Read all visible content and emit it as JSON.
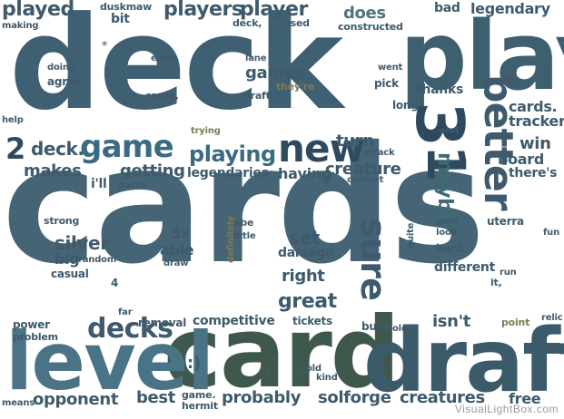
{
  "words": {
    "deck": "deck",
    "cards": "cards",
    "card": "card",
    "play": "play",
    "draft": "draft",
    "level": "level",
    "game": "game",
    "new": "new",
    "three": "3",
    "one": "1",
    "better": "better",
    "sure": "sure",
    "decks": "decks",
    "playing": "playing",
    "played": "played",
    "duskmaw": "duskmaw",
    "players": "players",
    "player": "player",
    "does": "does",
    "bad": "bad",
    "legendary": "legendary",
    "making": "making",
    "bit": "bit",
    "deck_comma": "deck,",
    "used": "used",
    "constructed": "constructed",
    "extra": "extra",
    "lane": "lane",
    "went": "went",
    "doing": "doing",
    "agree": "agree",
    "games": "games",
    "pick": "pick",
    "cards_comma": "cards,",
    "draft_dot": "draft.",
    "theyre": "they're",
    "thanks": "thanks",
    "long": "long",
    "help": "help",
    "trying": "trying",
    "cards_dot": "cards.",
    "tracker": "tracker",
    "end": "end",
    "two": "2",
    "deck_dot": "deck.",
    "turn": "turn",
    "attack": "attack",
    "win": "win",
    "board": "board",
    "makes": "makes",
    "getting": "getting",
    "having": "having",
    "creature": "creature",
    "maybe": "maybe",
    "theres": "there's",
    "ill": "i'll",
    "packs": "packs",
    "legendaries": "legendaries",
    "five": "5",
    "current": "current",
    "strong": "strong",
    "sbe": "sbe",
    "gets": "gets",
    "look": "look",
    "uterra": "uterra",
    "silver": "silver",
    "threex": "3x",
    "little": "little",
    "set": "set",
    "fun": "fun",
    "able": "able",
    "draw": "draw",
    "damage": "damage",
    "hard": "hard",
    "big": "big",
    "random": "random",
    "casual": "casual",
    "quite": "quite",
    "right": "right",
    "different": "different",
    "run": "run",
    "it_comma": "it,",
    "four": "4",
    "definitely": "definitely",
    "great": "great",
    "power": "power",
    "far": "far",
    "relic": "relic",
    "problem": "problem",
    "removal": "removal",
    "competitive": "competitive",
    "tickets": "tickets",
    "build": "build",
    "isnt": "isn't",
    "point": "point",
    "old": "old",
    "gold": "gold",
    "kind": "kind",
    "x": "x",
    "smiley": ":)",
    "means": "means",
    "opponent": "opponent",
    "best": "best",
    "game_dot": "game.",
    "hermit": "hermit",
    "probably": "probably",
    "solforge": "solforge",
    "creatures": "creatures",
    "free": "free",
    "star": "*"
  },
  "watermark": "VisualLightBox.com",
  "colors": {
    "dark_slate": "#3e5a6c",
    "slate": "#52707f",
    "steel": "#3a6b82",
    "navy": "#2f4a5f",
    "teal": "#3f6a72",
    "forest": "#40584a",
    "olive": "#7d7a55",
    "grey_green": "#6f7d78",
    "khaki": "#8b8458",
    "light_steel": "#8aa3b2"
  }
}
